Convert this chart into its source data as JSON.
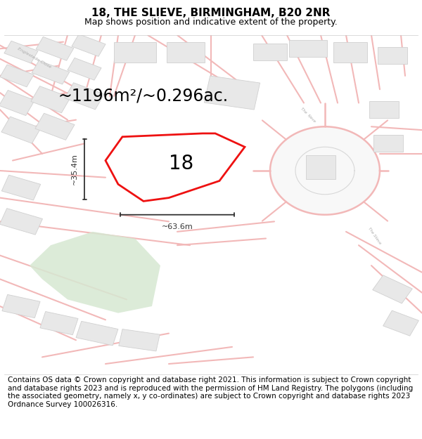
{
  "title": "18, THE SLIEVE, BIRMINGHAM, B20 2NR",
  "subtitle": "Map shows position and indicative extent of the property.",
  "area_text": "~1196m²/~0.296ac.",
  "label_18": "18",
  "dim_height": "~35.4m",
  "dim_width": "~63.6m",
  "footer": "Contains OS data © Crown copyright and database right 2021. This information is subject to Crown copyright and database rights 2023 and is reproduced with the permission of HM Land Registry. The polygons (including the associated geometry, namely x, y co-ordinates) are subject to Crown copyright and database rights 2023 Ordnance Survey 100026316.",
  "bg_color": "#ffffff",
  "map_bg": "#ffffff",
  "road_color": "#f2b8b8",
  "road_outline": "#e89898",
  "building_fill": "#e8e8e8",
  "building_stroke": "#d0d0d0",
  "plot_fill": "#ffffff",
  "plot_stroke": "#ee1111",
  "green_fill": "#d6e8d2",
  "dim_color": "#333333",
  "street_label_color": "#aaaaaa",
  "title_fontsize": 11,
  "subtitle_fontsize": 9,
  "area_fontsize": 17,
  "label_fontsize": 20,
  "footer_fontsize": 7.5
}
